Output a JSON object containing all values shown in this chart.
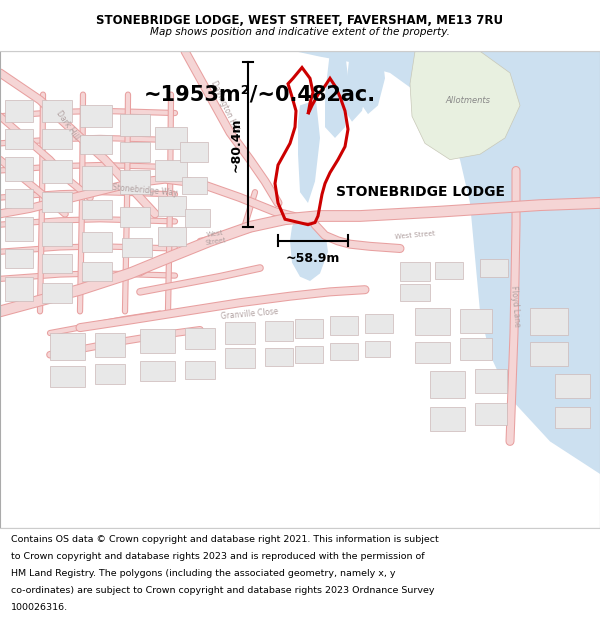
{
  "title_line1": "STONEBRIDGE LODGE, WEST STREET, FAVERSHAM, ME13 7RU",
  "title_line2": "Map shows position and indicative extent of the property.",
  "area_text": "~1953m²/~0.482ac.",
  "label_name": "STONEBRIDGE LODGE",
  "dim_vertical": "~80.4m",
  "dim_horizontal": "~58.9m",
  "footer_text_lines": [
    "Contains OS data © Crown copyright and database right 2021. This information is subject",
    "to Crown copyright and database rights 2023 and is reproduced with the permission of",
    "HM Land Registry. The polygons (including the associated geometry, namely x, y",
    "co-ordinates) are subject to Crown copyright and database rights 2023 Ordnance Survey",
    "100026316."
  ],
  "map_bg": "#f8f8f8",
  "water_color": "#cce0f0",
  "water_edge": "#b8d0e8",
  "allotment_color": "#e8f0e0",
  "plot_outline_color": "#cc0000",
  "road_fill": "#f5d5d5",
  "road_outline": "#e8a0a0",
  "building_fill": "#e8e8e8",
  "building_outline": "#ccb8b8",
  "dim_line_color": "#000000",
  "text_gray": "#b0a0a0",
  "label_color": "#000000"
}
